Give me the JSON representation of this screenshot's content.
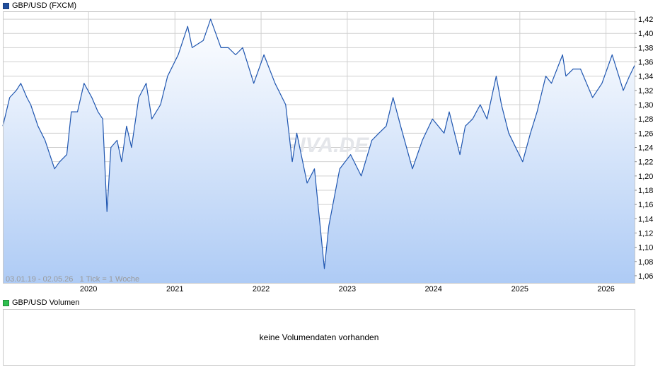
{
  "legend": {
    "price_label": "GBP/USD (FXCM)",
    "volume_label": "GBP/USD Volumen"
  },
  "volume_panel": {
    "message": "keine Volumendaten vorhanden"
  },
  "watermark": "ARIVA.DE",
  "range_info": "03.01.19 - 02.05.26   1 Tick = 1 Woche",
  "colors": {
    "line": "#1f56b0",
    "fill_top": "#ffffff",
    "fill_bottom": "#aecbf5",
    "grid": "#d0d0d0"
  },
  "chart_data": {
    "type": "area",
    "title": "GBP/USD (FXCM)",
    "xlabel": "",
    "ylabel": "",
    "x_range": [
      "2019-01-03",
      "2026-05-02"
    ],
    "ylim": [
      1.05,
      1.43
    ],
    "y_ticks": [
      "1,42",
      "1,40",
      "1,38",
      "1,36",
      "1,34",
      "1,32",
      "1,30",
      "1,28",
      "1,26",
      "1,24",
      "1,22",
      "1,20",
      "1,18",
      "1,16",
      "1,14",
      "1,12",
      "1,10",
      "1,08",
      "1,06"
    ],
    "x_ticks": [
      "2020",
      "2021",
      "2022",
      "2023",
      "2024",
      "2025",
      "2026"
    ],
    "grid": true,
    "series": [
      {
        "values": [
          [
            "2019-01-03",
            1.27
          ],
          [
            "2019-02-01",
            1.31
          ],
          [
            "2019-03-01",
            1.32
          ],
          [
            "2019-03-20",
            1.33
          ],
          [
            "2019-04-15",
            1.31
          ],
          [
            "2019-05-01",
            1.3
          ],
          [
            "2019-06-01",
            1.27
          ],
          [
            "2019-07-01",
            1.25
          ],
          [
            "2019-08-10",
            1.21
          ],
          [
            "2019-09-01",
            1.22
          ],
          [
            "2019-10-01",
            1.23
          ],
          [
            "2019-10-20",
            1.29
          ],
          [
            "2019-11-15",
            1.29
          ],
          [
            "2019-12-13",
            1.33
          ],
          [
            "2020-01-15",
            1.31
          ],
          [
            "2020-02-10",
            1.29
          ],
          [
            "2020-03-01",
            1.28
          ],
          [
            "2020-03-19",
            1.15
          ],
          [
            "2020-04-05",
            1.24
          ],
          [
            "2020-05-01",
            1.25
          ],
          [
            "2020-05-20",
            1.22
          ],
          [
            "2020-06-10",
            1.27
          ],
          [
            "2020-07-01",
            1.24
          ],
          [
            "2020-08-01",
            1.31
          ],
          [
            "2020-09-01",
            1.33
          ],
          [
            "2020-09-25",
            1.28
          ],
          [
            "2020-11-01",
            1.3
          ],
          [
            "2020-12-01",
            1.34
          ],
          [
            "2021-01-15",
            1.37
          ],
          [
            "2021-02-24",
            1.41
          ],
          [
            "2021-03-15",
            1.38
          ],
          [
            "2021-05-01",
            1.39
          ],
          [
            "2021-06-01",
            1.42
          ],
          [
            "2021-07-15",
            1.38
          ],
          [
            "2021-08-15",
            1.38
          ],
          [
            "2021-09-15",
            1.37
          ],
          [
            "2021-10-15",
            1.38
          ],
          [
            "2021-12-01",
            1.33
          ],
          [
            "2022-01-13",
            1.37
          ],
          [
            "2022-03-01",
            1.33
          ],
          [
            "2022-04-15",
            1.3
          ],
          [
            "2022-05-13",
            1.22
          ],
          [
            "2022-06-01",
            1.26
          ],
          [
            "2022-07-15",
            1.19
          ],
          [
            "2022-08-15",
            1.21
          ],
          [
            "2022-09-26",
            1.07
          ],
          [
            "2022-10-15",
            1.13
          ],
          [
            "2022-11-30",
            1.21
          ],
          [
            "2023-01-15",
            1.23
          ],
          [
            "2023-03-01",
            1.2
          ],
          [
            "2023-04-15",
            1.25
          ],
          [
            "2023-05-15",
            1.26
          ],
          [
            "2023-06-15",
            1.27
          ],
          [
            "2023-07-14",
            1.31
          ],
          [
            "2023-08-15",
            1.27
          ],
          [
            "2023-10-04",
            1.21
          ],
          [
            "2023-11-15",
            1.25
          ],
          [
            "2023-12-28",
            1.28
          ],
          [
            "2024-02-15",
            1.26
          ],
          [
            "2024-03-08",
            1.29
          ],
          [
            "2024-04-22",
            1.23
          ],
          [
            "2024-05-15",
            1.27
          ],
          [
            "2024-06-15",
            1.28
          ],
          [
            "2024-07-17",
            1.3
          ],
          [
            "2024-08-15",
            1.28
          ],
          [
            "2024-09-23",
            1.34
          ],
          [
            "2024-10-15",
            1.3
          ],
          [
            "2024-11-15",
            1.26
          ],
          [
            "2025-01-13",
            1.22
          ],
          [
            "2025-02-15",
            1.26
          ],
          [
            "2025-03-15",
            1.29
          ],
          [
            "2025-04-21",
            1.34
          ],
          [
            "2025-05-15",
            1.33
          ],
          [
            "2025-07-01",
            1.37
          ],
          [
            "2025-07-15",
            1.34
          ],
          [
            "2025-08-15",
            1.35
          ],
          [
            "2025-09-15",
            1.35
          ],
          [
            "2025-11-05",
            1.31
          ],
          [
            "2025-12-15",
            1.33
          ],
          [
            "2026-01-27",
            1.37
          ],
          [
            "2026-02-15",
            1.35
          ],
          [
            "2026-03-15",
            1.32
          ],
          [
            "2026-04-10",
            1.34
          ],
          [
            "2026-05-02",
            1.355
          ]
        ]
      }
    ]
  }
}
